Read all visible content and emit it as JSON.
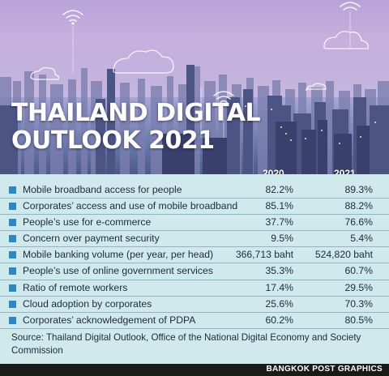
{
  "title_line1": "THAILAND DIGITAL",
  "title_line2": "OUTLOOK 2021",
  "columns": [
    "2020",
    "2021"
  ],
  "chart_data": {
    "type": "table",
    "columns": [
      "2020",
      "2021"
    ],
    "rows": [
      {
        "label": "Mobile broadband access for people",
        "v2020": "82.2%",
        "v2021": "89.3%"
      },
      {
        "label": "Corporates’ access and use of mobile broadband",
        "v2020": "85.1%",
        "v2021": "88.2%"
      },
      {
        "label": "People’s use for e-commerce",
        "v2020": "37.7%",
        "v2021": "76.6%"
      },
      {
        "label": "Concern over payment security",
        "v2020": "9.5%",
        "v2021": "5.4%"
      },
      {
        "label": "Mobile banking volume (per year, per head)",
        "v2020": "366,713 baht",
        "v2021": "524,820 baht"
      },
      {
        "label": "People’s use of online government services",
        "v2020": "35.3%",
        "v2021": "60.7%"
      },
      {
        "label": "Ratio of remote workers",
        "v2020": "17.4%",
        "v2021": "29.5%"
      },
      {
        "label": "Cloud adoption by corporates",
        "v2020": "25.6%",
        "v2021": "70.3%"
      },
      {
        "label": "Corporates’ acknowledgement of PDPA",
        "v2020": "60.2%",
        "v2021": "80.5%"
      }
    ]
  },
  "source": "Source: Thailand Digital Outlook, Office of the National Digital Economy and Society Commission",
  "credit": "BANGKOK POST GRAPHICS",
  "colors": {
    "accent": "#2a88c8",
    "table_bg": "#cfe9ed",
    "footer": "#1a1a1a"
  }
}
